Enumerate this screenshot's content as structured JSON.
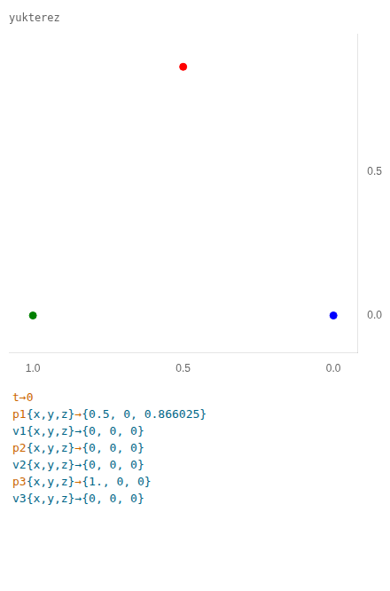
{
  "chart_data": {
    "type": "scatter",
    "title": "yukterez",
    "x": [
      0.5,
      1.0,
      0.0
    ],
    "values": [
      0.866025,
      0.0,
      0.0
    ],
    "colors": [
      "red",
      "green",
      "blue"
    ],
    "xlim": [
      1.08,
      -0.08
    ],
    "ylim": [
      -0.13,
      0.98
    ],
    "xticks": [
      {
        "value": 1.0,
        "label": "1.0"
      },
      0.5,
      {
        "value": 0.0,
        "label": "0.0"
      }
    ],
    "yticks": [
      {
        "value": 0.0,
        "label": "0.0"
      },
      0.5
    ],
    "grid": false,
    "legend": false,
    "annotations": [
      [
        {
          "text": "t→0",
          "color": "#cc6600"
        }
      ],
      [
        {
          "text": "p1",
          "color": "#cc6600"
        },
        {
          "text": "{x,y,z}",
          "color": "#006688"
        },
        {
          "text": "→",
          "color": "#cc6600"
        },
        {
          "text": "{0.5, 0, 0.866025}",
          "color": "#006688"
        }
      ],
      [
        {
          "text": "v1",
          "color": "#006688"
        },
        {
          "text": "{x,y,z}",
          "color": "#006688"
        },
        {
          "text": "→",
          "color": "#006688"
        },
        {
          "text": "{0, 0, 0}",
          "color": "#006688"
        }
      ],
      [
        {
          "text": "p2",
          "color": "#cc6600"
        },
        {
          "text": "{x,y,z}",
          "color": "#006688"
        },
        {
          "text": "→",
          "color": "#cc6600"
        },
        {
          "text": "{0, 0, 0}",
          "color": "#006688"
        }
      ],
      [
        {
          "text": "v2",
          "color": "#006688"
        },
        {
          "text": "{x,y,z}",
          "color": "#006688"
        },
        {
          "text": "→",
          "color": "#006688"
        },
        {
          "text": "{0, 0, 0}",
          "color": "#006688"
        }
      ],
      [
        {
          "text": "p3",
          "color": "#cc6600"
        },
        {
          "text": "{x,y,z}",
          "color": "#006688"
        },
        {
          "text": "→",
          "color": "#cc6600"
        },
        {
          "text": "{1., 0, 0}",
          "color": "#006688"
        }
      ],
      [
        {
          "text": "v3",
          "color": "#006688"
        },
        {
          "text": "{x,y,z}",
          "color": "#006688"
        },
        {
          "text": "→",
          "color": "#006688"
        },
        {
          "text": "{0, 0, 0}",
          "color": "#006688"
        }
      ]
    ]
  }
}
